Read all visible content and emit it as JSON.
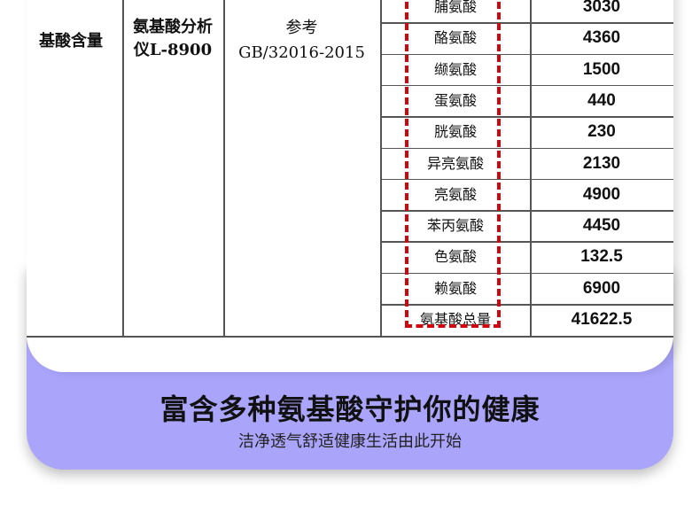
{
  "table": {
    "category": "基酸含量",
    "method": "氨基酸分析仪L-8900",
    "method_line1": "氨基酸分析",
    "method_line2": "仪L-8900",
    "standard_line1": "参考",
    "standard_line2": "GB/32016-2015",
    "rows": [
      {
        "name": "脯氨酸",
        "value": "3030"
      },
      {
        "name": "酪氨酸",
        "value": "4360"
      },
      {
        "name": "缬氨酸",
        "value": "1500"
      },
      {
        "name": "蛋氨酸",
        "value": "440"
      },
      {
        "name": "胱氨酸",
        "value": "230"
      },
      {
        "name": "异亮氨酸",
        "value": "2130"
      },
      {
        "name": "亮氨酸",
        "value": "4900"
      },
      {
        "name": "苯丙氨酸",
        "value": "4450"
      },
      {
        "name": "色氨酸",
        "value": "132.5"
      },
      {
        "name": "赖氨酸",
        "value": "6900"
      },
      {
        "name": "氨基酸总量",
        "value": "41622.5"
      }
    ]
  },
  "banner": {
    "title": "富含多种氨基酸守护你的健康",
    "subtitle": "洁净透气舒适健康生活由此开始"
  },
  "colors": {
    "accent": "#aaa4fb",
    "highlight": "#d0070f"
  }
}
